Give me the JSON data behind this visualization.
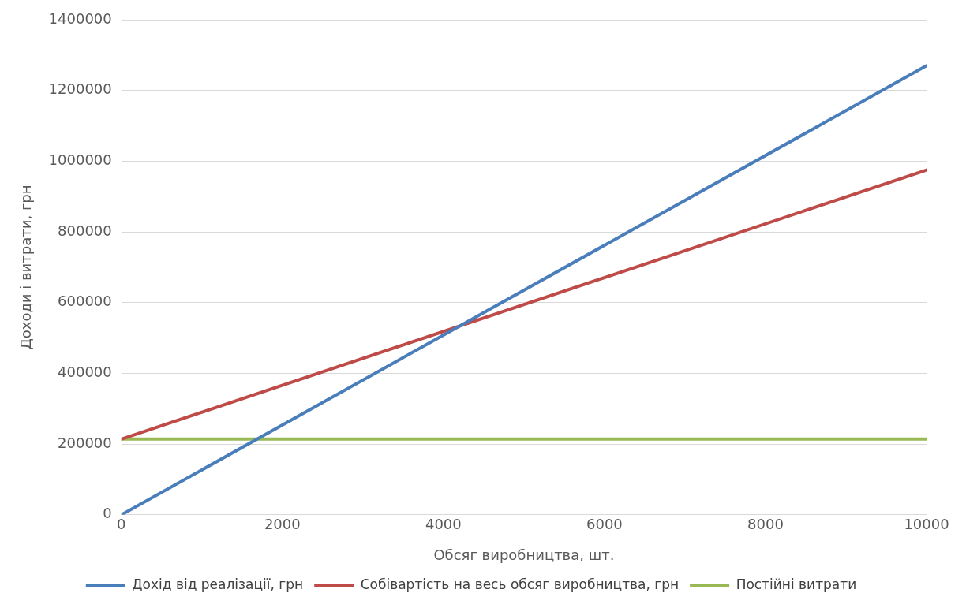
{
  "chart_data": {
    "type": "line",
    "xlabel": "Обсяг виробництва, шт.",
    "ylabel": "Доходи і витрати, грн",
    "x": [
      0,
      10000
    ],
    "series": [
      {
        "name": "Дохід від реалізації, грн",
        "color": "#4a7ebb",
        "values": [
          0,
          1270000
        ]
      },
      {
        "name": "Собівартість на весь обсяг виробництва, грн",
        "color": "#be4b48",
        "values": [
          214000,
          975000
        ]
      },
      {
        "name": "Постійні витрати",
        "color": "#98b954",
        "values": [
          214000,
          214000
        ]
      }
    ],
    "xlim": [
      0,
      10000
    ],
    "xticks": [
      0,
      2000,
      4000,
      6000,
      8000,
      10000
    ],
    "ylim": [
      0,
      1400000
    ],
    "yticks": [
      0,
      200000,
      400000,
      600000,
      800000,
      1000000,
      1200000,
      1400000
    ],
    "grid": "y",
    "legend": "bottom",
    "marker": "none",
    "line_style": "solid"
  }
}
